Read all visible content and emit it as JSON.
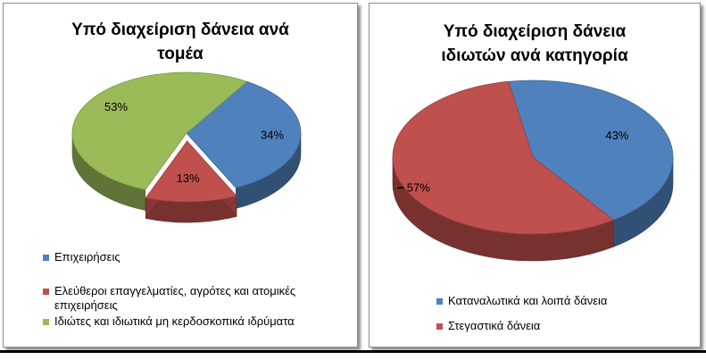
{
  "colors": {
    "blue": "#4f81bd",
    "red": "#c0504d",
    "green": "#9bbb59"
  },
  "chart_data": [
    {
      "type": "pie",
      "title": "Υπό διαχείριση δάνεια ανά τομέα",
      "title_lines": [
        "Υπό διαχείριση δάνεια ανά",
        "τομέα"
      ],
      "categories": [
        "Επιχειρήσεις",
        "Ελεύθεροι επαγγελματίες, αγρότες και ατομικές επιχειρήσεις",
        "Ιδιώτες και ιδιωτικά μη κερδοσκοπικά ιδρύματα"
      ],
      "legend_lines": [
        [
          "Επιχειρήσεις"
        ],
        [
          "Ελεύθεροι επαγγελματίες, αγρότες και ατομικές",
          "επιχειρήσεις"
        ],
        [
          "Ιδιώτες και ιδιωτικά μη κερδοσκοπικά ιδρύματα"
        ]
      ],
      "values": [
        34,
        13,
        53
      ],
      "labels": [
        "34%",
        "13%",
        "53%"
      ],
      "colors": [
        "#4f81bd",
        "#c0504d",
        "#9bbb59"
      ],
      "exploded_slice": 1,
      "style": "3d",
      "legend_position": "bottom"
    },
    {
      "type": "pie",
      "title": "Υπό διαχείριση δάνεια ιδιωτών ανά κατηγορία",
      "title_lines": [
        "Υπό διαχείριση δάνεια",
        "ιδιωτών ανά κατηγορία"
      ],
      "categories": [
        "Καταναλωτικά και λοιπά δάνεια",
        "Στεγαστικά δάνεια"
      ],
      "legend_lines": [
        [
          "Καταναλωτικά και λοιπά δάνεια"
        ],
        [
          "Στεγαστικά δάνεια"
        ]
      ],
      "values": [
        43,
        57
      ],
      "labels": [
        "43%",
        "57%"
      ],
      "colors": [
        "#4f81bd",
        "#c0504d"
      ],
      "style": "3d",
      "legend_position": "bottom"
    }
  ]
}
